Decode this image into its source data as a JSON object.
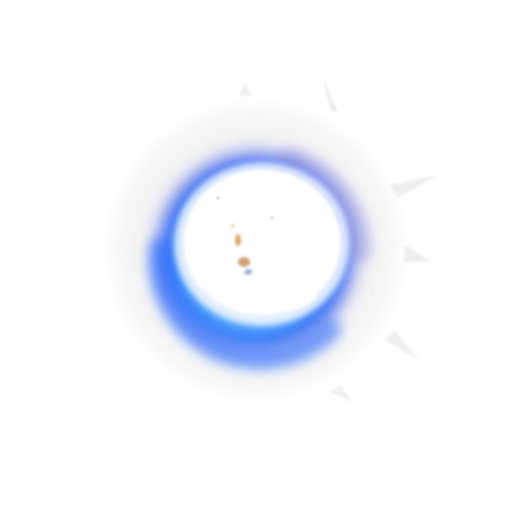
{
  "scene": {
    "subject": "energy-orb",
    "background_color": "#ffffff",
    "colors": {
      "outer_haze": "#f1f1f1",
      "ring_primary": "#1e6bff",
      "ring_secondary": "#4aa8ff",
      "ring_violet": "#7b86e6",
      "core": "#ffffff",
      "core_speck_orange": "#d98a3a",
      "core_speck_blue": "#6a7bb8"
    }
  }
}
